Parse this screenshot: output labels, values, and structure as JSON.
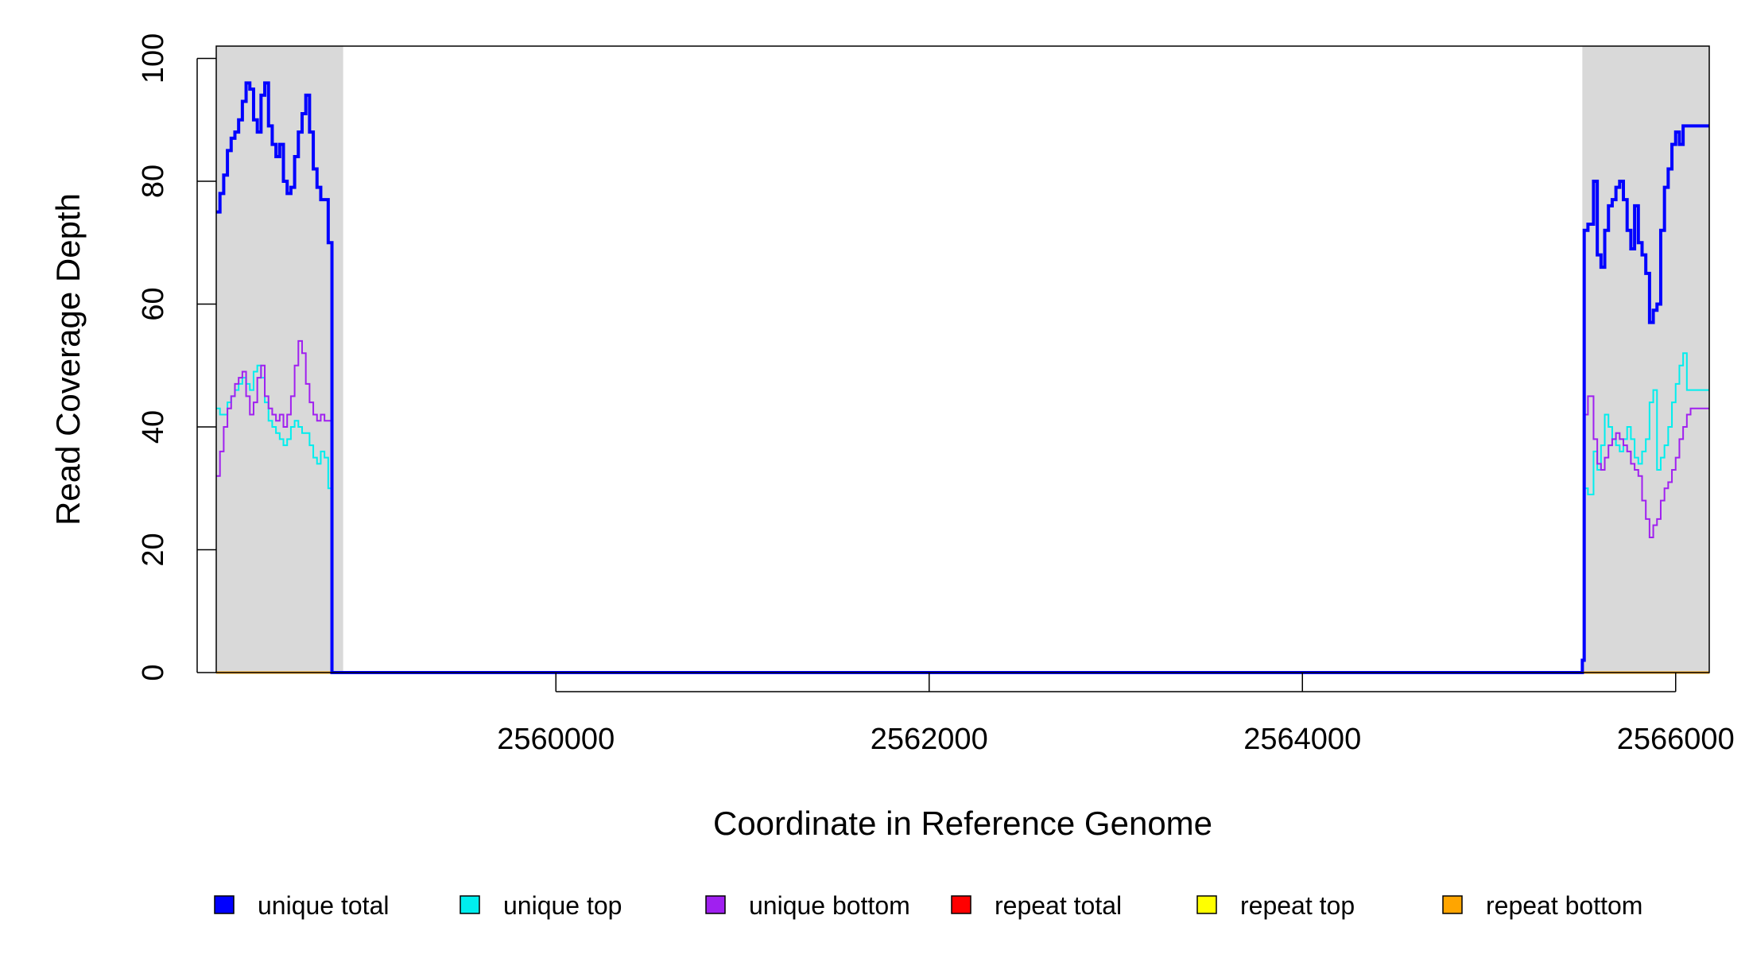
{
  "chart_data": {
    "type": "line",
    "xlabel": "Coordinate in Reference Genome",
    "ylabel": "Read Coverage Depth",
    "xlim": [
      2558180,
      2566180
    ],
    "ylim": [
      0,
      102
    ],
    "x_ticks": [
      2560000,
      2562000,
      2564000,
      2566000
    ],
    "x_tick_labels": [
      "2560000",
      "2562000",
      "2564000",
      "2566000"
    ],
    "y_ticks": [
      0,
      20,
      40,
      60,
      80,
      100
    ],
    "y_tick_labels": [
      "0",
      "20",
      "40",
      "60",
      "80",
      "100"
    ],
    "shaded_regions": [
      [
        2558180,
        2558860
      ],
      [
        2565500,
        2566180
      ]
    ],
    "shade_color": "#d9d9d9",
    "legend_position": "bottom",
    "series": [
      {
        "name": "unique total",
        "color": "#0000ff",
        "stroke": 4,
        "x": [
          2558180,
          2558200,
          2558220,
          2558240,
          2558260,
          2558280,
          2558300,
          2558320,
          2558340,
          2558360,
          2558380,
          2558400,
          2558420,
          2558440,
          2558460,
          2558480,
          2558500,
          2558520,
          2558540,
          2558560,
          2558580,
          2558600,
          2558620,
          2558640,
          2558660,
          2558680,
          2558700,
          2558720,
          2558740,
          2558760,
          2558780,
          2558800,
          2558820,
          2558840,
          2558850,
          2558860,
          2558870,
          2565480,
          2565500,
          2565510,
          2565530,
          2565560,
          2565580,
          2565600,
          2565620,
          2565640,
          2565660,
          2565680,
          2565700,
          2565720,
          2565740,
          2565760,
          2565780,
          2565800,
          2565820,
          2565840,
          2565860,
          2565880,
          2565900,
          2565920,
          2565940,
          2565960,
          2565980,
          2566000,
          2566020,
          2566040,
          2566060,
          2566080,
          2566100,
          2566120,
          2566140,
          2566160,
          2566180
        ],
        "y": [
          75,
          78,
          81,
          85,
          87,
          88,
          90,
          93,
          96,
          95,
          90,
          88,
          94,
          96,
          89,
          86,
          84,
          86,
          80,
          78,
          79,
          84,
          88,
          91,
          94,
          88,
          82,
          79,
          77,
          77,
          70,
          0,
          0,
          0,
          0,
          0,
          0,
          0,
          2,
          72,
          73,
          80,
          68,
          66,
          72,
          76,
          77,
          79,
          80,
          77,
          72,
          69,
          76,
          70,
          68,
          65,
          57,
          59,
          60,
          72,
          79,
          82,
          86,
          88,
          86,
          89,
          89,
          89,
          89,
          89,
          89,
          89,
          89
        ],
        "note_values": "coverage depth"
      },
      {
        "name": "unique top",
        "color": "#00eeee",
        "stroke": 2,
        "x": [
          2558180,
          2558200,
          2558220,
          2558240,
          2558260,
          2558280,
          2558300,
          2558320,
          2558340,
          2558360,
          2558380,
          2558400,
          2558420,
          2558440,
          2558460,
          2558480,
          2558500,
          2558520,
          2558540,
          2558560,
          2558580,
          2558600,
          2558620,
          2558640,
          2558660,
          2558680,
          2558700,
          2558720,
          2558740,
          2558760,
          2558780,
          2558800,
          2558820,
          2558840,
          2558850,
          2558860,
          2558870,
          2565480,
          2565500,
          2565510,
          2565530,
          2565560,
          2565580,
          2565600,
          2565620,
          2565640,
          2565660,
          2565680,
          2565700,
          2565720,
          2565740,
          2565760,
          2565780,
          2565800,
          2565820,
          2565840,
          2565860,
          2565880,
          2565900,
          2565920,
          2565940,
          2565960,
          2565980,
          2566000,
          2566020,
          2566040,
          2566060,
          2566080,
          2566100,
          2566120,
          2566140,
          2566160,
          2566180
        ],
        "y": [
          43,
          42,
          42,
          44,
          45,
          46,
          47,
          48,
          47,
          46,
          49,
          50,
          48,
          44,
          41,
          40,
          39,
          38,
          37,
          38,
          40,
          41,
          40,
          39,
          39,
          37,
          35,
          34,
          36,
          35,
          30,
          0,
          0,
          0,
          0,
          0,
          0,
          0,
          2,
          30,
          29,
          36,
          33,
          37,
          42,
          40,
          38,
          37,
          36,
          38,
          40,
          38,
          35,
          34,
          36,
          38,
          44,
          46,
          33,
          35,
          37,
          40,
          44,
          47,
          50,
          52,
          46,
          46,
          46,
          46,
          46,
          46,
          46
        ]
      },
      {
        "name": "unique bottom",
        "color": "#a020f0",
        "stroke": 2,
        "x": [
          2558180,
          2558200,
          2558220,
          2558240,
          2558260,
          2558280,
          2558300,
          2558320,
          2558340,
          2558360,
          2558380,
          2558400,
          2558420,
          2558440,
          2558460,
          2558480,
          2558500,
          2558520,
          2558540,
          2558560,
          2558580,
          2558600,
          2558620,
          2558640,
          2558660,
          2558680,
          2558700,
          2558720,
          2558740,
          2558760,
          2558780,
          2558800,
          2558820,
          2558840,
          2558850,
          2558860,
          2558870,
          2565480,
          2565500,
          2565510,
          2565530,
          2565560,
          2565580,
          2565600,
          2565620,
          2565640,
          2565660,
          2565680,
          2565700,
          2565720,
          2565740,
          2565760,
          2565780,
          2565800,
          2565820,
          2565840,
          2565860,
          2565880,
          2565900,
          2565920,
          2565940,
          2565960,
          2565980,
          2566000,
          2566020,
          2566040,
          2566060,
          2566080,
          2566100,
          2566120,
          2566140,
          2566160,
          2566180
        ],
        "y": [
          32,
          36,
          40,
          43,
          45,
          47,
          48,
          49,
          45,
          42,
          44,
          48,
          50,
          45,
          43,
          42,
          41,
          42,
          40,
          42,
          45,
          50,
          54,
          52,
          47,
          44,
          42,
          41,
          42,
          41,
          41,
          0,
          0,
          0,
          0,
          0,
          0,
          0,
          2,
          42,
          45,
          38,
          34,
          33,
          35,
          37,
          38,
          39,
          38,
          37,
          36,
          34,
          33,
          32,
          28,
          25,
          22,
          24,
          25,
          28,
          30,
          31,
          33,
          35,
          38,
          40,
          42,
          43,
          43,
          43,
          43,
          43,
          43
        ]
      },
      {
        "name": "repeat total",
        "color": "#ff0000",
        "stroke": 2,
        "x": [
          2558180,
          2566180
        ],
        "y": [
          0,
          0
        ]
      },
      {
        "name": "repeat top",
        "color": "#ffff00",
        "stroke": 2,
        "x": [
          2558180,
          2566180
        ],
        "y": [
          0,
          0
        ]
      },
      {
        "name": "repeat bottom",
        "color": "#ffa500",
        "stroke": 3,
        "x": [
          2558180,
          2566180
        ],
        "y": [
          0,
          0
        ]
      }
    ]
  }
}
